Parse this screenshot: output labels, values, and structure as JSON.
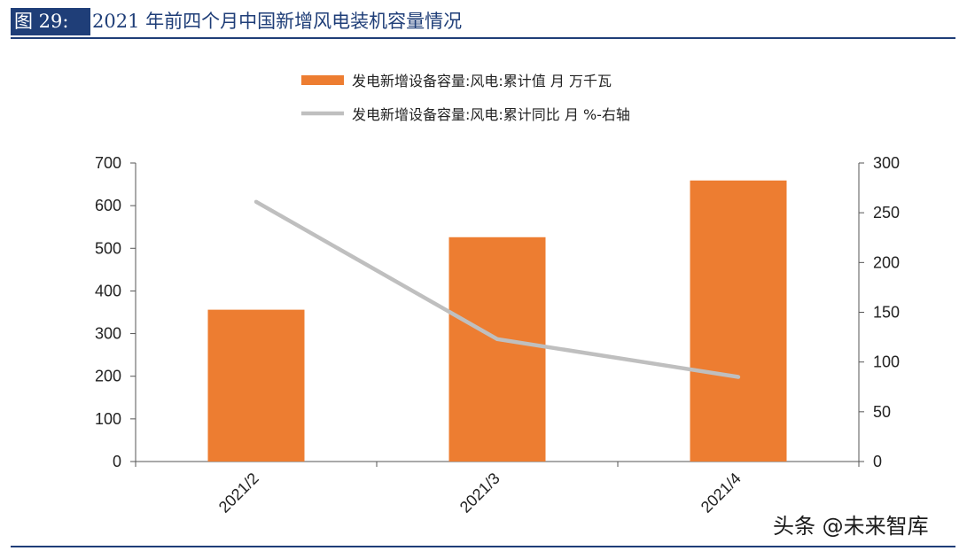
{
  "header": {
    "figure_label": "图 29:",
    "title": "2021 年前四个月中国新增风电装机容量情况"
  },
  "watermark": "头条 @未来智库",
  "colors": {
    "brand_blue": "#1f3e78",
    "bar_orange": "#ed7d31",
    "line_gray": "#bfbfbf",
    "axis": "#555555"
  },
  "chart_data": {
    "type": "bar",
    "categories": [
      "2021/2",
      "2021/3",
      "2021/4"
    ],
    "series": [
      {
        "name": "发电新增设备容量:风电:累计值  月 万千瓦",
        "type": "bar",
        "axis": "left",
        "values": [
          356,
          526,
          659
        ]
      },
      {
        "name": "发电新增设备容量:风电:累计同比  月 %-右轴",
        "type": "line",
        "axis": "right",
        "values": [
          261,
          123,
          85
        ]
      }
    ],
    "y_left": {
      "range": [
        0,
        700
      ],
      "ticks": [
        0,
        100,
        200,
        300,
        400,
        500,
        600,
        700
      ]
    },
    "y_right": {
      "range": [
        0,
        300
      ],
      "ticks": [
        0,
        50,
        100,
        150,
        200,
        250,
        300
      ]
    },
    "grid": false,
    "legend_position": "top"
  }
}
